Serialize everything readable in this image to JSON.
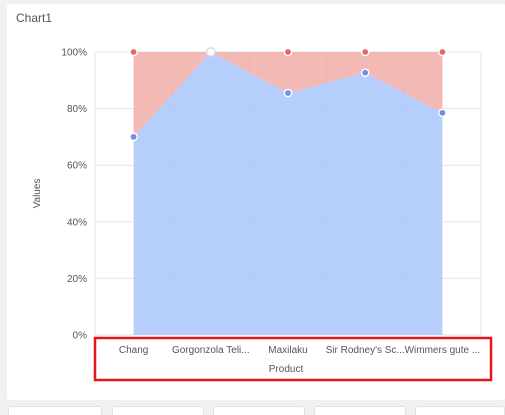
{
  "chart": {
    "title": "Chart1"
  },
  "chart_data": {
    "type": "area",
    "stacked": "percent",
    "categories": [
      "Chang",
      "Gorgonzola Teli...",
      "Maxilaku",
      "Sir Rodney's Sc...",
      "Wimmers gute ..."
    ],
    "series": [
      {
        "values": [
          70,
          100,
          85.5,
          92.7,
          78.5
        ],
        "color": "#a8c6fa"
      },
      {
        "values": [
          30,
          0,
          14.5,
          7.3,
          21.5
        ],
        "color": "#f0aaa4"
      }
    ],
    "xlabel": "Product",
    "ylabel": "Values",
    "ylim": [
      0,
      100
    ],
    "y_ticks": [
      "0%",
      "20%",
      "40%",
      "60%",
      "80%",
      "100%"
    ],
    "grid": true,
    "marker_colors": {
      "series1": "#6f8fe6",
      "series2": "#e06a6a"
    },
    "highlight_color": "#e8141c"
  }
}
